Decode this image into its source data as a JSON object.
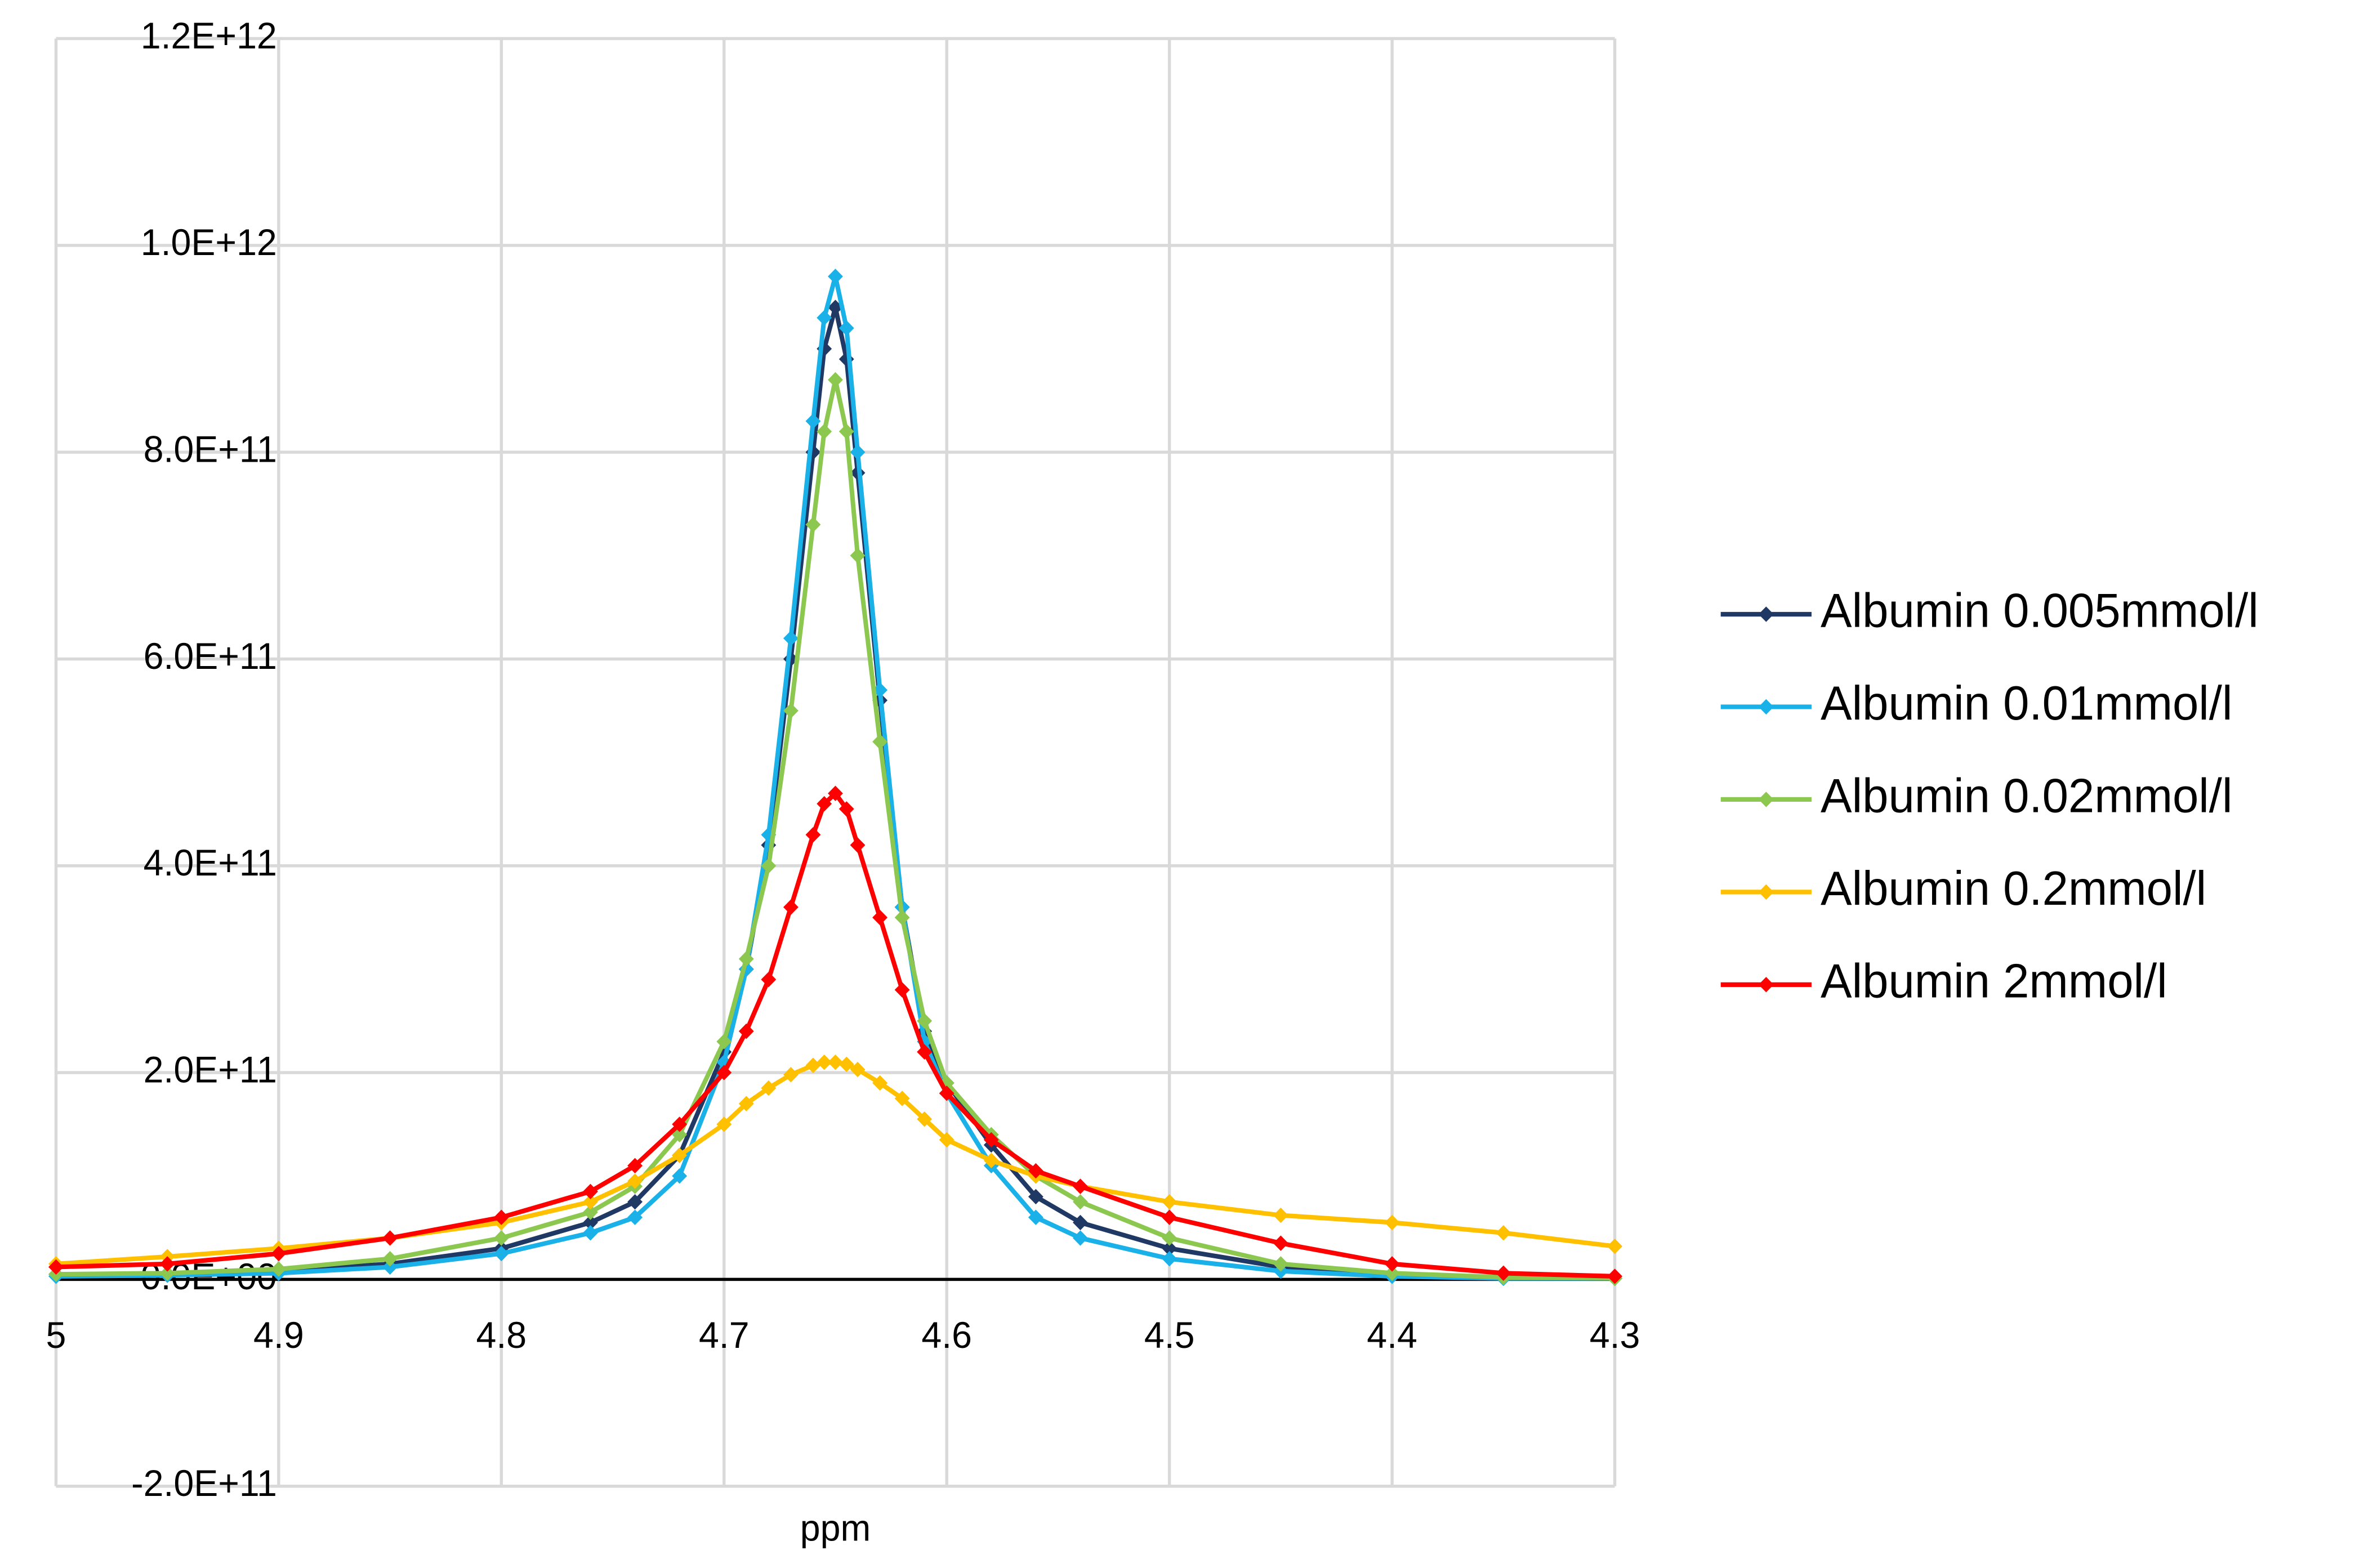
{
  "chart_data": {
    "type": "line",
    "x_label": "ppm",
    "x": [
      5,
      4.95,
      4.9,
      4.85,
      4.8,
      4.76,
      4.74,
      4.72,
      4.7,
      4.69,
      4.68,
      4.67,
      4.66,
      4.655,
      4.65,
      4.645,
      4.64,
      4.63,
      4.62,
      4.61,
      4.6,
      4.58,
      4.56,
      4.54,
      4.5,
      4.45,
      4.4,
      4.35,
      4.3
    ],
    "series": [
      {
        "name": "Albumin 0.005mmol/l",
        "color": "#1f3864",
        "values": [
          5000000000.0,
          5000000000.0,
          8000000000.0,
          15000000000.0,
          30000000000.0,
          55000000000.0,
          75000000000.0,
          120000000000.0,
          220000000000.0,
          300000000000.0,
          420000000000.0,
          600000000000.0,
          800000000000.0,
          900000000000.0,
          940000000000.0,
          890000000000.0,
          780000000000.0,
          560000000000.0,
          360000000000.0,
          240000000000.0,
          190000000000.0,
          130000000000.0,
          80000000000.0,
          55000000000.0,
          30000000000.0,
          12000000000.0,
          5000000000.0,
          2000000000.0,
          1000000000.0
        ]
      },
      {
        "name": "Albumin 0.01mmol/l",
        "color": "#1ab0e8",
        "values": [
          3000000000.0,
          4000000000.0,
          6000000000.0,
          12000000000.0,
          25000000000.0,
          45000000000.0,
          60000000000.0,
          100000000000.0,
          210000000000.0,
          300000000000.0,
          430000000000.0,
          620000000000.0,
          830000000000.0,
          930000000000.0,
          970000000000.0,
          920000000000.0,
          800000000000.0,
          570000000000.0,
          360000000000.0,
          230000000000.0,
          180000000000.0,
          110000000000.0,
          60000000000.0,
          40000000000.0,
          20000000000.0,
          8000000000.0,
          3000000000.0,
          1000000000.0,
          1000000000.0
        ]
      },
      {
        "name": "Albumin 0.02mmol/l",
        "color": "#8cc850",
        "values": [
          5000000000.0,
          6000000000.0,
          10000000000.0,
          20000000000.0,
          40000000000.0,
          65000000000.0,
          90000000000.0,
          140000000000.0,
          230000000000.0,
          310000000000.0,
          400000000000.0,
          550000000000.0,
          730000000000.0,
          820000000000.0,
          870000000000.0,
          820000000000.0,
          700000000000.0,
          520000000000.0,
          350000000000.0,
          250000000000.0,
          190000000000.0,
          140000000000.0,
          100000000000.0,
          75000000000.0,
          40000000000.0,
          15000000000.0,
          6000000000.0,
          2000000000.0,
          1000000000.0
        ]
      },
      {
        "name": "Albumin 0.2mmol/l",
        "color": "#ffc000",
        "values": [
          15000000000.0,
          22000000000.0,
          30000000000.0,
          40000000000.0,
          55000000000.0,
          75000000000.0,
          95000000000.0,
          120000000000.0,
          150000000000.0,
          170000000000.0,
          185000000000.0,
          198000000000.0,
          207000000000.0,
          210000000000.0,
          210000000000.0,
          208000000000.0,
          203000000000.0,
          190000000000.0,
          175000000000.0,
          155000000000.0,
          135000000000.0,
          115000000000.0,
          100000000000.0,
          90000000000.0,
          75000000000.0,
          62000000000.0,
          55000000000.0,
          45000000000.0,
          32000000000.0
        ]
      },
      {
        "name": "Albumin 2mmol/l",
        "color": "#ff0000",
        "values": [
          12000000000.0,
          15000000000.0,
          25000000000.0,
          40000000000.0,
          60000000000.0,
          85000000000.0,
          110000000000.0,
          150000000000.0,
          200000000000.0,
          240000000000.0,
          290000000000.0,
          360000000000.0,
          430000000000.0,
          460000000000.0,
          470000000000.0,
          455000000000.0,
          420000000000.0,
          350000000000.0,
          280000000000.0,
          220000000000.0,
          180000000000.0,
          135000000000.0,
          105000000000.0,
          90000000000.0,
          60000000000.0,
          35000000000.0,
          15000000000.0,
          6000000000.0,
          3000000000.0
        ]
      }
    ],
    "xlim": [
      5,
      4.3
    ],
    "xticks": [
      5,
      4.9,
      4.8,
      4.7,
      4.6,
      4.5,
      4.4,
      4.3
    ],
    "ylim": [
      -200000000000.0,
      1200000000000.0
    ],
    "yticks": [
      {
        "value": -200000000000.0,
        "label": "-2.0E+11"
      },
      {
        "value": 0,
        "label": "0.0E+00"
      },
      {
        "value": 200000000000.0,
        "label": "2.0E+11"
      },
      {
        "value": 400000000000.0,
        "label": "4.0E+11"
      },
      {
        "value": 600000000000.0,
        "label": "6.0E+11"
      },
      {
        "value": 800000000000.0,
        "label": "8.0E+11"
      },
      {
        "value": 1000000000000.0,
        "label": "1.0E+12"
      },
      {
        "value": 1200000000000.0,
        "label": "1.2E+12"
      }
    ],
    "grid": true,
    "legend": "right"
  }
}
